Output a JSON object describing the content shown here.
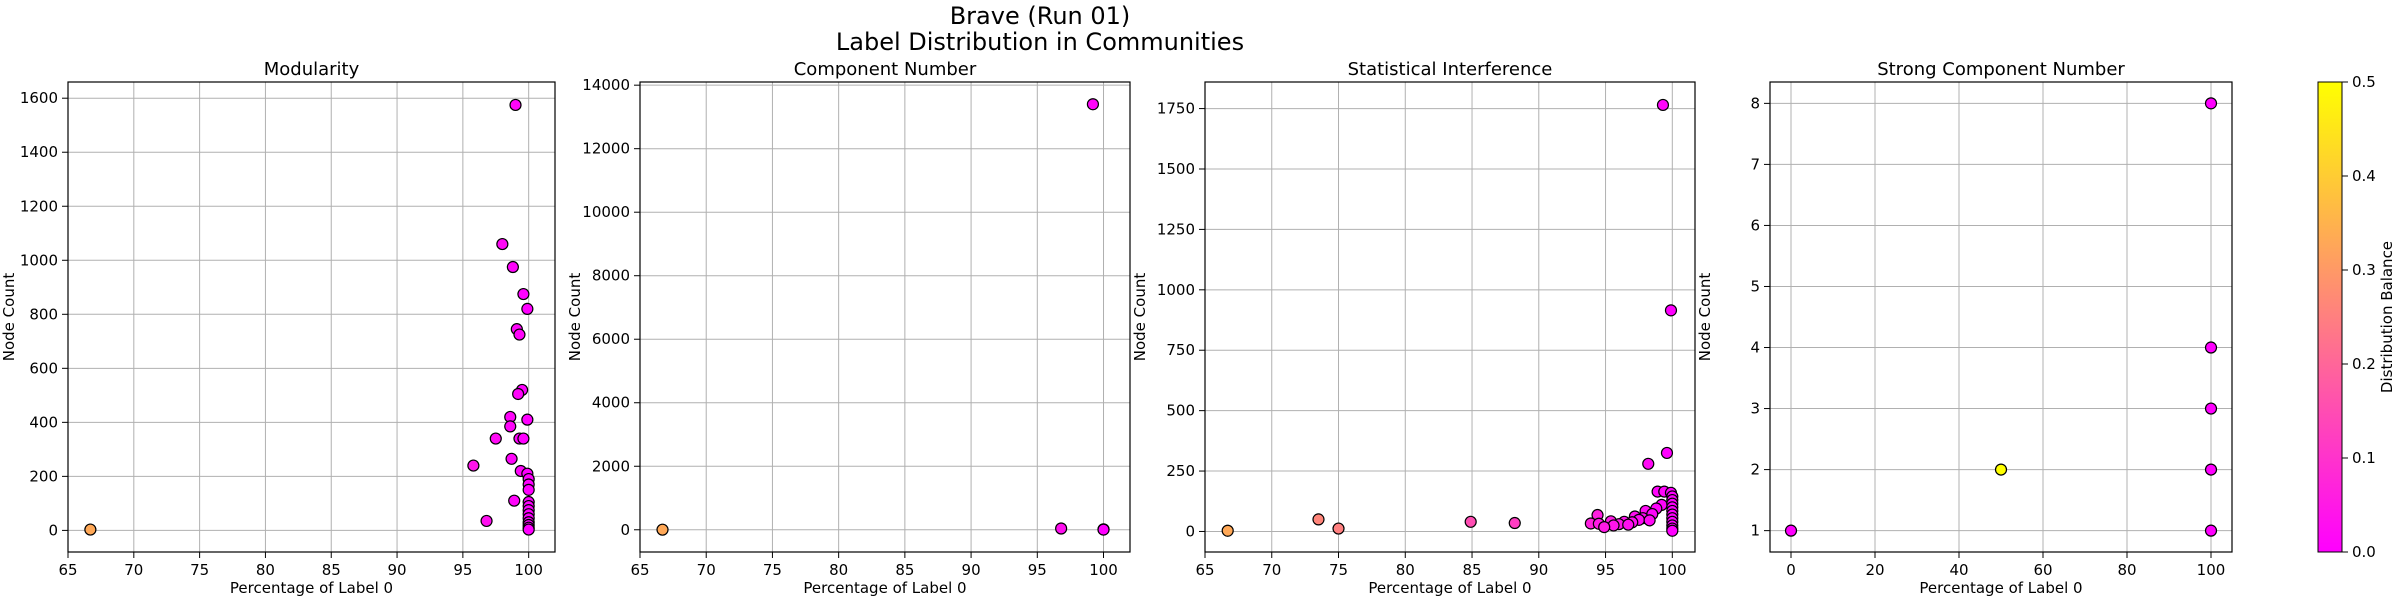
{
  "figure": {
    "title_line1": "Brave (Run 01)",
    "title_line2": "Label Distribution in Communities"
  },
  "colorbar": {
    "label": "Distribution Balance",
    "ticks": [
      "0.0",
      "0.1",
      "0.2",
      "0.3",
      "0.4",
      "0.5"
    ],
    "min": 0.0,
    "max": 0.5,
    "color_min": "#ff00ff",
    "color_max": "#ffff00"
  },
  "chart_data": [
    {
      "type": "scatter",
      "title": "Modularity",
      "xlabel": "Percentage of Label 0",
      "ylabel": "Node Count",
      "xlim": [
        65,
        102
      ],
      "ylim": [
        -80,
        1660
      ],
      "xticks": [
        65,
        70,
        75,
        80,
        85,
        90,
        95,
        100
      ],
      "yticks": [
        0,
        200,
        400,
        600,
        800,
        1000,
        1200,
        1400,
        1600
      ],
      "grid": true,
      "points": [
        {
          "x": 66.7,
          "y": 3,
          "c": 0.33
        },
        {
          "x": 99.0,
          "y": 1575,
          "c": 0.01
        },
        {
          "x": 98.0,
          "y": 1060,
          "c": 0.02
        },
        {
          "x": 98.8,
          "y": 975,
          "c": 0.01
        },
        {
          "x": 99.6,
          "y": 875,
          "c": 0.0
        },
        {
          "x": 99.9,
          "y": 820,
          "c": 0.0
        },
        {
          "x": 99.1,
          "y": 745,
          "c": 0.01
        },
        {
          "x": 99.3,
          "y": 725,
          "c": 0.01
        },
        {
          "x": 99.5,
          "y": 520,
          "c": 0.0
        },
        {
          "x": 99.2,
          "y": 505,
          "c": 0.01
        },
        {
          "x": 98.6,
          "y": 420,
          "c": 0.01
        },
        {
          "x": 99.9,
          "y": 410,
          "c": 0.0
        },
        {
          "x": 98.6,
          "y": 385,
          "c": 0.01
        },
        {
          "x": 97.5,
          "y": 340,
          "c": 0.02
        },
        {
          "x": 99.3,
          "y": 340,
          "c": 0.01
        },
        {
          "x": 99.6,
          "y": 340,
          "c": 0.0
        },
        {
          "x": 98.7,
          "y": 265,
          "c": 0.01
        },
        {
          "x": 95.8,
          "y": 240,
          "c": 0.04
        },
        {
          "x": 99.4,
          "y": 220,
          "c": 0.01
        },
        {
          "x": 99.9,
          "y": 210,
          "c": 0.0
        },
        {
          "x": 100,
          "y": 190,
          "c": 0.0
        },
        {
          "x": 100,
          "y": 170,
          "c": 0.0
        },
        {
          "x": 100,
          "y": 150,
          "c": 0.0
        },
        {
          "x": 98.9,
          "y": 110,
          "c": 0.01
        },
        {
          "x": 100,
          "y": 105,
          "c": 0.0
        },
        {
          "x": 100,
          "y": 90,
          "c": 0.0
        },
        {
          "x": 100,
          "y": 75,
          "c": 0.0
        },
        {
          "x": 100,
          "y": 60,
          "c": 0.0
        },
        {
          "x": 100,
          "y": 45,
          "c": 0.0
        },
        {
          "x": 96.8,
          "y": 35,
          "c": 0.03
        },
        {
          "x": 100,
          "y": 30,
          "c": 0.0
        },
        {
          "x": 100,
          "y": 20,
          "c": 0.0
        },
        {
          "x": 100,
          "y": 10,
          "c": 0.0
        },
        {
          "x": 100,
          "y": 3,
          "c": 0.0
        }
      ]
    },
    {
      "type": "scatter",
      "title": "Component Number",
      "xlabel": "Percentage of Label 0",
      "ylabel": "Node Count",
      "xlim": [
        65,
        102
      ],
      "ylim": [
        -700,
        14100
      ],
      "xticks": [
        65,
        70,
        75,
        80,
        85,
        90,
        95,
        100
      ],
      "yticks": [
        0,
        2000,
        4000,
        6000,
        8000,
        10000,
        12000,
        14000
      ],
      "grid": true,
      "points": [
        {
          "x": 66.7,
          "y": 3,
          "c": 0.33
        },
        {
          "x": 99.2,
          "y": 13400,
          "c": 0.01
        },
        {
          "x": 96.8,
          "y": 40,
          "c": 0.03
        },
        {
          "x": 100,
          "y": 15,
          "c": 0.0
        },
        {
          "x": 100,
          "y": 5,
          "c": 0.0
        }
      ]
    },
    {
      "type": "scatter",
      "title": "Statistical Interference",
      "xlabel": "Percentage of Label 0",
      "ylabel": "Node Count",
      "xlim": [
        65,
        101.7
      ],
      "ylim": [
        -85,
        1860
      ],
      "xticks": [
        65,
        70,
        75,
        80,
        85,
        90,
        95,
        100
      ],
      "yticks": [
        0,
        250,
        500,
        750,
        1000,
        1250,
        1500,
        1750
      ],
      "grid": true,
      "points": [
        {
          "x": 66.7,
          "y": 3,
          "c": 0.33
        },
        {
          "x": 73.5,
          "y": 50,
          "c": 0.26
        },
        {
          "x": 75.0,
          "y": 12,
          "c": 0.25
        },
        {
          "x": 84.9,
          "y": 40,
          "c": 0.15
        },
        {
          "x": 88.2,
          "y": 35,
          "c": 0.12
        },
        {
          "x": 99.3,
          "y": 1765,
          "c": 0.01
        },
        {
          "x": 99.9,
          "y": 915,
          "c": 0.0
        },
        {
          "x": 99.6,
          "y": 325,
          "c": 0.0
        },
        {
          "x": 98.2,
          "y": 280,
          "c": 0.02
        },
        {
          "x": 98.9,
          "y": 165,
          "c": 0.01
        },
        {
          "x": 99.4,
          "y": 165,
          "c": 0.01
        },
        {
          "x": 99.9,
          "y": 160,
          "c": 0.0
        },
        {
          "x": 100,
          "y": 145,
          "c": 0.0
        },
        {
          "x": 100,
          "y": 130,
          "c": 0.0
        },
        {
          "x": 99.2,
          "y": 110,
          "c": 0.01
        },
        {
          "x": 100,
          "y": 115,
          "c": 0.0
        },
        {
          "x": 98.8,
          "y": 95,
          "c": 0.01
        },
        {
          "x": 100,
          "y": 100,
          "c": 0.0
        },
        {
          "x": 98.0,
          "y": 85,
          "c": 0.02
        },
        {
          "x": 100,
          "y": 85,
          "c": 0.0
        },
        {
          "x": 98.5,
          "y": 72,
          "c": 0.01
        },
        {
          "x": 100,
          "y": 70,
          "c": 0.0
        },
        {
          "x": 94.4,
          "y": 68,
          "c": 0.06
        },
        {
          "x": 97.2,
          "y": 62,
          "c": 0.03
        },
        {
          "x": 97.8,
          "y": 55,
          "c": 0.02
        },
        {
          "x": 100,
          "y": 55,
          "c": 0.0
        },
        {
          "x": 97.5,
          "y": 48,
          "c": 0.02
        },
        {
          "x": 98.3,
          "y": 46,
          "c": 0.02
        },
        {
          "x": 95.4,
          "y": 42,
          "c": 0.05
        },
        {
          "x": 96.4,
          "y": 40,
          "c": 0.04
        },
        {
          "x": 97.0,
          "y": 38,
          "c": 0.03
        },
        {
          "x": 100,
          "y": 40,
          "c": 0.0
        },
        {
          "x": 93.9,
          "y": 33,
          "c": 0.06
        },
        {
          "x": 94.5,
          "y": 32,
          "c": 0.05
        },
        {
          "x": 96.0,
          "y": 30,
          "c": 0.04
        },
        {
          "x": 96.7,
          "y": 28,
          "c": 0.03
        },
        {
          "x": 95.6,
          "y": 25,
          "c": 0.04
        },
        {
          "x": 100,
          "y": 25,
          "c": 0.0
        },
        {
          "x": 94.9,
          "y": 18,
          "c": 0.05
        },
        {
          "x": 100,
          "y": 12,
          "c": 0.0
        },
        {
          "x": 100,
          "y": 3,
          "c": 0.0
        }
      ]
    },
    {
      "type": "scatter",
      "title": "Strong Component Number",
      "xlabel": "Percentage of Label 0",
      "ylabel": "Node Count",
      "xlim": [
        -5,
        105
      ],
      "ylim": [
        0.65,
        8.35
      ],
      "xticks": [
        0,
        20,
        40,
        60,
        80,
        100
      ],
      "yticks": [
        1,
        2,
        3,
        4,
        5,
        6,
        7,
        8
      ],
      "grid": true,
      "points": [
        {
          "x": 0,
          "y": 1,
          "c": 0.0
        },
        {
          "x": 50,
          "y": 2,
          "c": 0.5
        },
        {
          "x": 100,
          "y": 8,
          "c": 0.0
        },
        {
          "x": 100,
          "y": 4,
          "c": 0.0
        },
        {
          "x": 100,
          "y": 3,
          "c": 0.0
        },
        {
          "x": 100,
          "y": 2,
          "c": 0.0
        },
        {
          "x": 100,
          "y": 1,
          "c": 0.0
        }
      ]
    }
  ]
}
